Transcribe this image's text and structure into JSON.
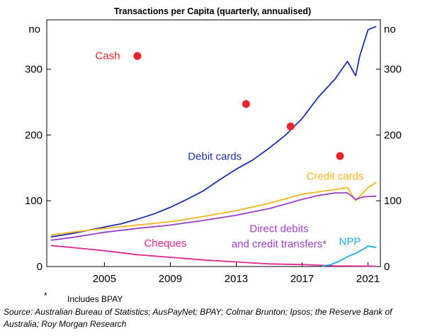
{
  "chart_data": {
    "type": "line",
    "title": "Transactions per Capita (quarterly, annualised)",
    "y_unit_left": "no",
    "y_unit_right": "no",
    "xlim": [
      2001.5,
      2021.75
    ],
    "ylim": [
      0,
      375
    ],
    "x_ticks": [
      2005,
      2009,
      2013,
      2017,
      2021
    ],
    "x_tick_labels": [
      "2005",
      "2009",
      "2013",
      "2017",
      "2021"
    ],
    "y_ticks": [
      0,
      100,
      200,
      300
    ],
    "y_tick_labels": [
      "0",
      "100",
      "200",
      "300"
    ],
    "grid": false,
    "series": [
      {
        "name": "Debit cards",
        "color": "#1f2fa8",
        "x": [
          2001.75,
          2003,
          2004,
          2005,
          2006,
          2007,
          2008,
          2009,
          2010,
          2011,
          2012,
          2013,
          2014,
          2015,
          2016,
          2017,
          2018,
          2019,
          2019.75,
          2020.25,
          2020.5,
          2021,
          2021.5
        ],
        "y": [
          45,
          50,
          55,
          60,
          65,
          72,
          80,
          90,
          102,
          115,
          132,
          148,
          162,
          180,
          200,
          225,
          258,
          285,
          312,
          290,
          320,
          360,
          365
        ]
      },
      {
        "name": "Credit cards",
        "color": "#f5b41e",
        "x": [
          2001.75,
          2003,
          2005,
          2007,
          2009,
          2011,
          2013,
          2015,
          2017,
          2019,
          2019.75,
          2020.25,
          2021,
          2021.5
        ],
        "y": [
          48,
          52,
          58,
          63,
          68,
          76,
          85,
          96,
          110,
          117,
          120,
          100,
          120,
          128
        ]
      },
      {
        "name": "Direct debits and credit transfers*",
        "color": "#9b3fc4",
        "x": [
          2001.75,
          2003,
          2005,
          2007,
          2009,
          2011,
          2013,
          2015,
          2017,
          2018,
          2019,
          2019.75,
          2020.25,
          2020.75,
          2021.5
        ],
        "y": [
          40,
          44,
          52,
          58,
          63,
          70,
          78,
          88,
          102,
          108,
          112,
          112,
          102,
          106,
          107
        ]
      },
      {
        "name": "Cheques",
        "color": "#e0288f",
        "x": [
          2001.75,
          2003,
          2005,
          2007,
          2009,
          2011,
          2013,
          2015,
          2017,
          2019,
          2021.5
        ],
        "y": [
          32,
          29,
          24,
          18,
          14,
          10,
          7,
          4,
          3,
          1,
          0.5
        ]
      },
      {
        "name": "NPP",
        "color": "#1fa9e0",
        "x": [
          2018.2,
          2018.75,
          2019.25,
          2019.75,
          2020.25,
          2020.75,
          2021,
          2021.5
        ],
        "y": [
          0,
          3,
          8,
          15,
          20,
          27,
          31,
          29
        ]
      },
      {
        "name": "Cash",
        "color": "#e8242b",
        "marker": "dot",
        "x": [
          2007,
          2013.6,
          2016.3,
          2019.3
        ],
        "y": [
          320,
          247,
          213,
          168
        ]
      }
    ]
  },
  "footnote": {
    "marker": "*",
    "text": "Includes BPAY"
  },
  "source": "Source:  Australian Bureau of Statistics; AusPayNet; BPAY; Colmar Brunton; Ipsos; the Reserve Bank of Australia; Roy Morgan Research"
}
